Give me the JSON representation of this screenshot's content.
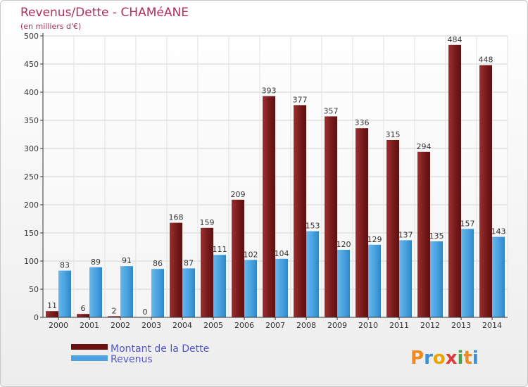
{
  "chart_data": {
    "type": "bar",
    "title": "Revenus/Dette - CHAMéANE",
    "subtitle": "(en milliers d'€)",
    "categories": [
      "2000",
      "2001",
      "2002",
      "2003",
      "2004",
      "2005",
      "2006",
      "2007",
      "2008",
      "2009",
      "2010",
      "2011",
      "2012",
      "2013",
      "2014"
    ],
    "series": [
      {
        "name": "Montant de la Dette",
        "color": "#7a1a1a",
        "values": [
          11,
          6,
          2,
          0,
          168,
          159,
          209,
          393,
          377,
          357,
          336,
          315,
          294,
          484,
          448
        ]
      },
      {
        "name": "Revenus",
        "color": "#4aa3e0",
        "values": [
          83,
          89,
          91,
          86,
          87,
          111,
          102,
          104,
          153,
          120,
          129,
          137,
          135,
          157,
          143
        ]
      }
    ],
    "yticks": [
      0,
      50,
      100,
      150,
      200,
      250,
      300,
      350,
      400,
      450,
      500
    ],
    "ylim": [
      0,
      500
    ],
    "grid": true,
    "legend_position": "bottom-left"
  },
  "logo": {
    "letters": [
      "P",
      "r",
      "o",
      "x",
      "i",
      "t",
      "i"
    ],
    "colors": [
      "#f08a1e",
      "#3a8fd6",
      "#e8a400",
      "#e03a3a",
      "#4aa34a",
      "#f08a1e",
      "#3a8fd6"
    ]
  }
}
